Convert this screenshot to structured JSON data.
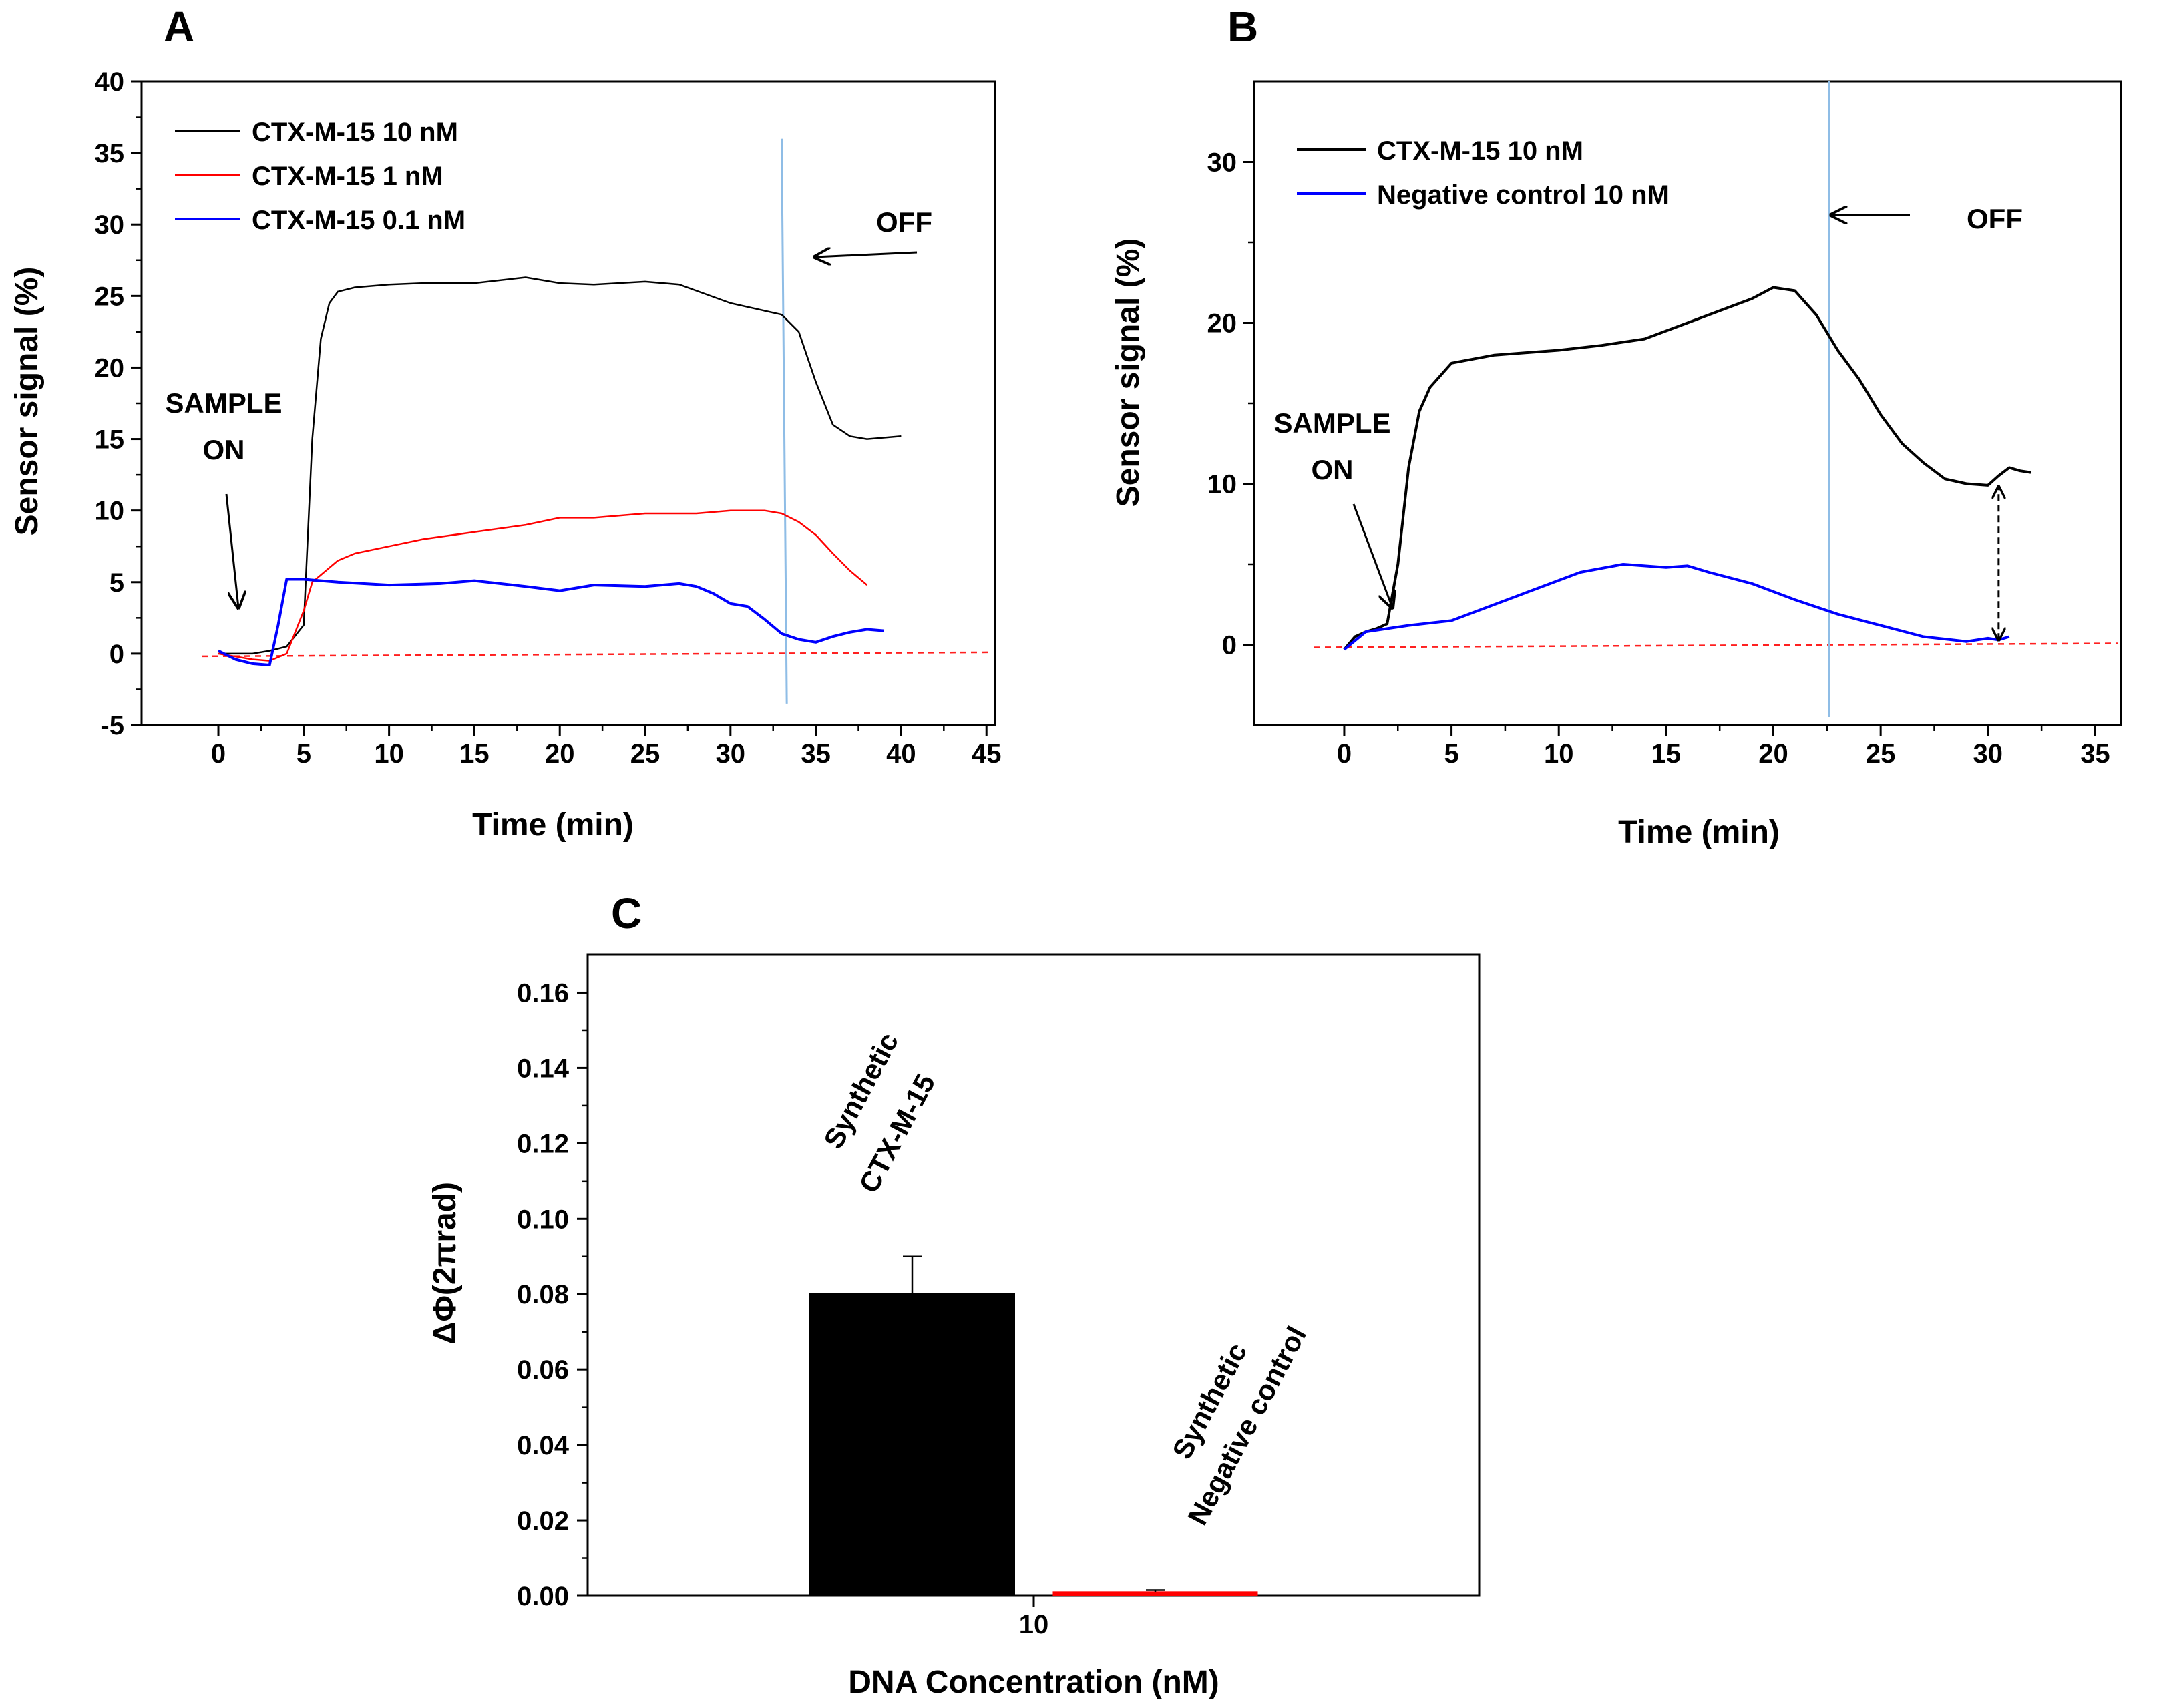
{
  "chart_data": [
    {
      "panel": "A",
      "type": "line",
      "xlabel": "Time (min)",
      "ylabel": "Sensor signal (%)",
      "xlim": [
        -4.5,
        45.5
      ],
      "ylim": [
        -5,
        40
      ],
      "xticks": [
        0,
        5,
        10,
        15,
        20,
        25,
        30,
        35,
        40,
        45
      ],
      "yticks": [
        -5,
        0,
        5,
        10,
        15,
        20,
        25,
        30,
        35,
        40
      ],
      "legend_position": "top-left",
      "baseline": 0,
      "series": [
        {
          "name": "CTX-M-15 10 nM",
          "color": "#000000",
          "x": [
            0,
            1,
            2,
            3,
            4,
            5,
            5.5,
            6,
            6.5,
            7,
            8,
            10,
            12,
            15,
            18,
            20,
            22,
            25,
            27,
            30,
            33,
            34,
            35,
            36,
            37,
            38,
            40
          ],
          "y": [
            0,
            0,
            0,
            0.2,
            0.5,
            2,
            15,
            22,
            24.5,
            25.3,
            25.6,
            25.8,
            25.9,
            25.9,
            26.3,
            25.9,
            25.8,
            26,
            25.8,
            24.5,
            23.7,
            22.5,
            19,
            16,
            15.2,
            15,
            15.2
          ]
        },
        {
          "name": "CTX-M-15 1 nM",
          "color": "#ff0000",
          "x": [
            0,
            1,
            2,
            3,
            4,
            5,
            5.5,
            6,
            7,
            8,
            10,
            12,
            15,
            18,
            20,
            22,
            25,
            28,
            30,
            32,
            33,
            34,
            35,
            36,
            37,
            38
          ],
          "y": [
            0,
            -0.2,
            -0.4,
            -0.5,
            0,
            3,
            5,
            5.5,
            6.5,
            7,
            7.5,
            8,
            8.5,
            9,
            9.5,
            9.5,
            9.8,
            9.8,
            10,
            10,
            9.8,
            9.2,
            8.3,
            7,
            5.8,
            4.8
          ]
        },
        {
          "name": "CTX-M-15 0.1 nM",
          "color": "#0000ff",
          "x": [
            0,
            1,
            2,
            3,
            3.5,
            4,
            5,
            7,
            10,
            13,
            15,
            18,
            20,
            22,
            25,
            27,
            28,
            29,
            30,
            31,
            32,
            33,
            34,
            35,
            36,
            37,
            38,
            39
          ],
          "y": [
            0.2,
            -0.4,
            -0.7,
            -0.8,
            2,
            5.2,
            5.2,
            5,
            4.8,
            4.9,
            5.1,
            4.7,
            4.4,
            4.8,
            4.7,
            4.9,
            4.7,
            4.2,
            3.5,
            3.3,
            2.4,
            1.4,
            1,
            0.8,
            1.2,
            1.5,
            1.7,
            1.6
          ]
        }
      ],
      "vertical_line": {
        "x": [
          33,
          33.3
        ],
        "y": [
          36,
          -3.5
        ],
        "color": "#8fbde6"
      },
      "annotations": [
        {
          "lines": [
            "SAMPLE",
            "ON"
          ]
        },
        {
          "lines": [
            "OFF"
          ]
        }
      ]
    },
    {
      "panel": "B",
      "type": "line",
      "xlabel": "Time (min)",
      "ylabel": "Sensor signal (%)",
      "xlim": [
        -4.2,
        36.2
      ],
      "ylim": [
        -5,
        35
      ],
      "xticks": [
        0,
        5,
        10,
        15,
        20,
        25,
        30,
        35
      ],
      "yticks": [
        0,
        10,
        20,
        30
      ],
      "legend_position": "top-left",
      "baseline": 0,
      "series": [
        {
          "name": "CTX-M-15  10 nM",
          "color": "#000000",
          "x": [
            0,
            0.5,
            1,
            1.5,
            2,
            2.5,
            3,
            3.5,
            4,
            5,
            7,
            9,
            10,
            12,
            14,
            16,
            18,
            19,
            20,
            21,
            22,
            23,
            24,
            25,
            26,
            27,
            28,
            29,
            30,
            30.5,
            31,
            31.5,
            32
          ],
          "y": [
            -0.3,
            0.5,
            0.8,
            1,
            1.3,
            5,
            11,
            14.5,
            16,
            17.5,
            18,
            18.2,
            18.3,
            18.6,
            19,
            20,
            21,
            21.5,
            22.2,
            22,
            20.5,
            18.3,
            16.5,
            14.3,
            12.5,
            11.3,
            10.3,
            10,
            9.9,
            10.5,
            11,
            10.8,
            10.7
          ]
        },
        {
          "name": "Negative control  10 nM",
          "color": "#0000ff",
          "x": [
            0,
            1,
            2,
            3,
            5,
            7,
            9,
            11,
            13,
            15,
            16,
            17,
            19,
            21,
            23,
            25,
            27,
            29,
            30,
            30.5,
            31
          ],
          "y": [
            -0.3,
            0.8,
            1,
            1.2,
            1.5,
            2.5,
            3.5,
            4.5,
            5,
            4.8,
            4.9,
            4.5,
            3.8,
            2.8,
            1.9,
            1.2,
            0.5,
            0.2,
            0.4,
            0.3,
            0.5
          ]
        }
      ],
      "vertical_line": {
        "x": [
          22.6,
          22.6
        ],
        "y": [
          35,
          -4.5
        ],
        "color": "#8fbde6"
      },
      "double_arrow": {
        "x": 30.5,
        "y": [
          0.3,
          9.8
        ]
      },
      "annotations": [
        {
          "lines": [
            "SAMPLE",
            "ON"
          ]
        },
        {
          "lines": [
            "OFF"
          ]
        }
      ]
    },
    {
      "panel": "C",
      "type": "bar",
      "xlabel": "DNA Concentration (nM)",
      "ylabel": "ΔΦ(2πrad)",
      "categories": [
        "10"
      ],
      "ylim": [
        0,
        0.17
      ],
      "yticks": [
        "0.00",
        "0.02",
        "0.04",
        "0.06",
        "0.08",
        "0.10",
        "0.12",
        "0.14",
        "0.16"
      ],
      "series": [
        {
          "label_lines": [
            "Synthetic",
            "CTX-M-15"
          ],
          "value": 0.08,
          "error": 0.01,
          "color": "#000000"
        },
        {
          "label_lines": [
            "Synthetic",
            "Negative control"
          ],
          "value": 0.001,
          "error": 0.0005,
          "color": "#ff0000"
        }
      ]
    }
  ],
  "panel_letters": {
    "a": "A",
    "b": "B",
    "c": "C"
  }
}
